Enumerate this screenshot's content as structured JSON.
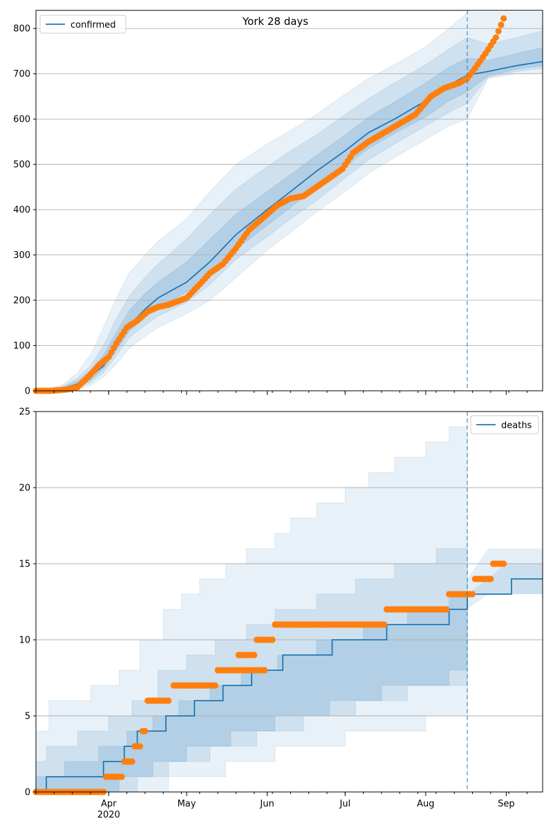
{
  "chart_data": [
    {
      "type": "line",
      "title": "York 28 days",
      "xlabel": "",
      "ylabel": "",
      "ylim": [
        0,
        840
      ],
      "yticks": [
        0,
        100,
        200,
        300,
        400,
        500,
        600,
        700,
        800
      ],
      "x_range": [
        "2020-03-04",
        "2020-09-15"
      ],
      "xtick_labels": [
        "Apr",
        "May",
        "Jun",
        "Jul",
        "Aug",
        "Sep"
      ],
      "xtick_dates": [
        "2020-04-01",
        "2020-05-01",
        "2020-06-01",
        "2020-07-01",
        "2020-08-01",
        "2020-09-01"
      ],
      "year_label": "2020",
      "forecast_start": "2020-08-17",
      "grid": "horizontal",
      "legend": {
        "placement": "top-left",
        "entries": [
          "confirmed"
        ]
      },
      "colors": {
        "model": "#1f77b4",
        "observed": "#ff7f0e"
      },
      "series": [
        {
          "name": "confirmed",
          "kind": "model-median",
          "x": [
            "2020-03-04",
            "2020-03-14",
            "2020-03-20",
            "2020-03-25",
            "2020-03-30",
            "2020-04-04",
            "2020-04-09",
            "2020-04-15",
            "2020-04-20",
            "2020-05-01",
            "2020-05-10",
            "2020-05-20",
            "2020-06-01",
            "2020-06-10",
            "2020-06-20",
            "2020-07-01",
            "2020-07-10",
            "2020-07-20",
            "2020-08-01",
            "2020-08-10",
            "2020-08-17",
            "2020-08-25",
            "2020-09-05",
            "2020-09-15"
          ],
          "y": [
            0,
            5,
            15,
            32,
            55,
            100,
            145,
            180,
            205,
            240,
            285,
            345,
            400,
            440,
            485,
            530,
            570,
            600,
            640,
            675,
            697,
            705,
            718,
            727
          ]
        },
        {
          "name": "observed",
          "kind": "points",
          "x": [
            "2020-03-04",
            "2020-03-10",
            "2020-03-16",
            "2020-03-20",
            "2020-03-24",
            "2020-03-28",
            "2020-04-01",
            "2020-04-04",
            "2020-04-08",
            "2020-04-12",
            "2020-04-16",
            "2020-04-20",
            "2020-04-24",
            "2020-05-01",
            "2020-05-06",
            "2020-05-10",
            "2020-05-15",
            "2020-05-20",
            "2020-05-25",
            "2020-06-01",
            "2020-06-05",
            "2020-06-10",
            "2020-06-15",
            "2020-06-20",
            "2020-06-25",
            "2020-06-30",
            "2020-07-04",
            "2020-07-10",
            "2020-07-16",
            "2020-07-22",
            "2020-07-28",
            "2020-08-03",
            "2020-08-08",
            "2020-08-14",
            "2020-08-17",
            "2020-08-20",
            "2020-08-24",
            "2020-08-28",
            "2020-08-31"
          ],
          "y": [
            0,
            0,
            3,
            8,
            30,
            55,
            75,
            105,
            140,
            155,
            175,
            185,
            190,
            205,
            235,
            260,
            280,
            315,
            355,
            390,
            410,
            425,
            430,
            450,
            470,
            490,
            525,
            550,
            570,
            590,
            610,
            650,
            668,
            680,
            690,
            712,
            745,
            780,
            822
          ]
        }
      ],
      "bands": [
        {
          "upper": [
            0,
            12,
            40,
            80,
            140,
            205,
            260,
            300,
            330,
            380,
            440,
            500,
            545,
            575,
            610,
            655,
            690,
            720,
            760,
            800,
            835,
            835,
            835,
            835
          ],
          "lower": [
            0,
            1,
            4,
            12,
            30,
            60,
            95,
            120,
            140,
            170,
            200,
            250,
            310,
            350,
            395,
            440,
            480,
            515,
            555,
            585,
            600,
            690,
            700,
            702
          ]
        },
        {
          "upper": [
            0,
            9,
            28,
            55,
            100,
            160,
            210,
            250,
            280,
            335,
            390,
            445,
            495,
            530,
            565,
            610,
            645,
            680,
            720,
            755,
            780,
            765,
            780,
            795
          ],
          "lower": [
            0,
            2,
            7,
            18,
            40,
            78,
            118,
            145,
            165,
            195,
            235,
            290,
            340,
            380,
            420,
            470,
            510,
            545,
            585,
            615,
            635,
            692,
            705,
            712
          ]
        },
        {
          "upper": [
            0,
            7,
            22,
            45,
            80,
            130,
            178,
            215,
            240,
            285,
            335,
            390,
            440,
            478,
            520,
            565,
            605,
            638,
            680,
            715,
            735,
            730,
            745,
            758
          ],
          "lower": [
            0,
            3,
            10,
            24,
            48,
            90,
            132,
            162,
            183,
            218,
            258,
            312,
            365,
            405,
            448,
            495,
            535,
            568,
            605,
            640,
            660,
            695,
            710,
            718
          ]
        }
      ]
    },
    {
      "type": "line",
      "title": "",
      "xlabel": "",
      "ylabel": "",
      "ylim": [
        0,
        25
      ],
      "yticks": [
        0,
        5,
        10,
        15,
        20,
        25
      ],
      "x_range": [
        "2020-03-04",
        "2020-09-15"
      ],
      "xtick_labels": [
        "Apr",
        "May",
        "Jun",
        "Jul",
        "Aug",
        "Sep"
      ],
      "xtick_dates": [
        "2020-04-01",
        "2020-05-01",
        "2020-06-01",
        "2020-07-01",
        "2020-08-01",
        "2020-09-01"
      ],
      "year_label": "2020",
      "forecast_start": "2020-08-17",
      "grid": "horizontal",
      "legend": {
        "placement": "top-right",
        "entries": [
          "deaths"
        ]
      },
      "colors": {
        "model": "#1f77b4",
        "observed": "#ff7f0e"
      },
      "series": [
        {
          "name": "deaths",
          "kind": "model-step",
          "x": [
            "2020-03-04",
            "2020-03-08",
            "2020-03-30",
            "2020-04-07",
            "2020-04-12",
            "2020-04-23",
            "2020-05-04",
            "2020-05-15",
            "2020-05-26",
            "2020-06-07",
            "2020-06-26",
            "2020-07-17",
            "2020-08-10",
            "2020-08-17",
            "2020-09-03",
            "2020-09-15"
          ],
          "y": [
            0,
            1,
            2,
            3,
            4,
            5,
            6,
            7,
            8,
            9,
            10,
            11,
            12,
            13,
            14,
            14
          ]
        },
        {
          "name": "observed",
          "kind": "points-segments",
          "segments": [
            {
              "from": "2020-03-04",
              "to": "2020-03-30",
              "y": 0
            },
            {
              "from": "2020-03-31",
              "to": "2020-04-06",
              "y": 1
            },
            {
              "from": "2020-04-07",
              "to": "2020-04-10",
              "y": 2
            },
            {
              "from": "2020-04-11",
              "to": "2020-04-13",
              "y": 3
            },
            {
              "from": "2020-04-14",
              "to": "2020-04-15",
              "y": 4
            },
            {
              "from": "2020-04-16",
              "to": "2020-04-24",
              "y": 6
            },
            {
              "from": "2020-04-26",
              "to": "2020-05-12",
              "y": 7
            },
            {
              "from": "2020-05-13",
              "to": "2020-05-31",
              "y": 8
            },
            {
              "from": "2020-05-21",
              "to": "2020-05-27",
              "y": 9
            },
            {
              "from": "2020-05-28",
              "to": "2020-06-03",
              "y": 10
            },
            {
              "from": "2020-06-04",
              "to": "2020-07-16",
              "y": 11
            },
            {
              "from": "2020-07-17",
              "to": "2020-08-09",
              "y": 12
            },
            {
              "from": "2020-08-10",
              "to": "2020-08-19",
              "y": 13
            },
            {
              "from": "2020-08-20",
              "to": "2020-08-26",
              "y": 14
            },
            {
              "from": "2020-08-27",
              "to": "2020-08-31",
              "y": 15
            }
          ]
        }
      ],
      "bands": [
        {
          "upper_x": [
            "2020-03-04",
            "2020-03-09",
            "2020-03-25",
            "2020-04-05",
            "2020-04-13",
            "2020-04-22",
            "2020-04-29",
            "2020-05-06",
            "2020-05-16",
            "2020-05-24",
            "2020-06-04",
            "2020-06-10",
            "2020-06-20",
            "2020-07-01",
            "2020-07-10",
            "2020-07-20",
            "2020-08-01",
            "2020-08-10",
            "2020-08-17"
          ],
          "upper_y": [
            4,
            6,
            7,
            8,
            10,
            12,
            13,
            14,
            15,
            16,
            17,
            18,
            19,
            20,
            21,
            22,
            23,
            24,
            25
          ],
          "lower_x": [
            "2020-03-04",
            "2020-04-13",
            "2020-04-24",
            "2020-05-16",
            "2020-06-04",
            "2020-07-01",
            "2020-08-01",
            "2020-08-17"
          ],
          "lower_y": [
            0,
            0,
            1,
            2,
            3,
            4,
            5,
            6
          ]
        },
        {
          "upper_x": [
            "2020-03-04",
            "2020-03-08",
            "2020-03-20",
            "2020-04-01",
            "2020-04-10",
            "2020-04-20",
            "2020-05-01",
            "2020-05-12",
            "2020-05-24",
            "2020-06-04",
            "2020-06-20",
            "2020-07-05",
            "2020-07-20",
            "2020-08-05",
            "2020-08-17"
          ],
          "upper_y": [
            2,
            3,
            4,
            5,
            6,
            8,
            9,
            10,
            11,
            12,
            13,
            14,
            15,
            16,
            17
          ],
          "lower_x": [
            "2020-03-04",
            "2020-03-30",
            "2020-04-12",
            "2020-04-24",
            "2020-05-10",
            "2020-05-28",
            "2020-06-15",
            "2020-07-05",
            "2020-07-25",
            "2020-08-17"
          ],
          "lower_y": [
            0,
            0,
            1,
            2,
            3,
            4,
            5,
            6,
            7,
            8
          ]
        },
        {
          "upper_x": [
            "2020-03-04",
            "2020-03-15",
            "2020-03-28",
            "2020-04-08",
            "2020-04-18",
            "2020-04-28",
            "2020-05-10",
            "2020-05-22",
            "2020-06-05",
            "2020-06-20",
            "2020-07-08",
            "2020-07-25",
            "2020-08-10",
            "2020-08-17"
          ],
          "upper_y": [
            1,
            2,
            3,
            4,
            5,
            6,
            7,
            8,
            9,
            10,
            11,
            12,
            13,
            14
          ],
          "lower_x": [
            "2020-03-04",
            "2020-03-20",
            "2020-04-05",
            "2020-04-18",
            "2020-05-01",
            "2020-05-18",
            "2020-06-04",
            "2020-06-25",
            "2020-07-15",
            "2020-08-10",
            "2020-08-17"
          ],
          "lower_y": [
            0,
            0,
            1,
            2,
            3,
            4,
            5,
            6,
            7,
            8,
            9
          ]
        }
      ],
      "forecast_bands": [
        {
          "x": [
            "2020-08-17",
            "2020-08-25",
            "2020-09-01",
            "2020-09-15"
          ],
          "upper": [
            14,
            16,
            16,
            16
          ],
          "lower": [
            12,
            13,
            13,
            13
          ]
        },
        {
          "x": [
            "2020-08-17",
            "2020-08-25",
            "2020-09-01",
            "2020-09-15"
          ],
          "upper": [
            13,
            14,
            15,
            15
          ],
          "lower": [
            13,
            13,
            13,
            13
          ]
        }
      ]
    }
  ]
}
